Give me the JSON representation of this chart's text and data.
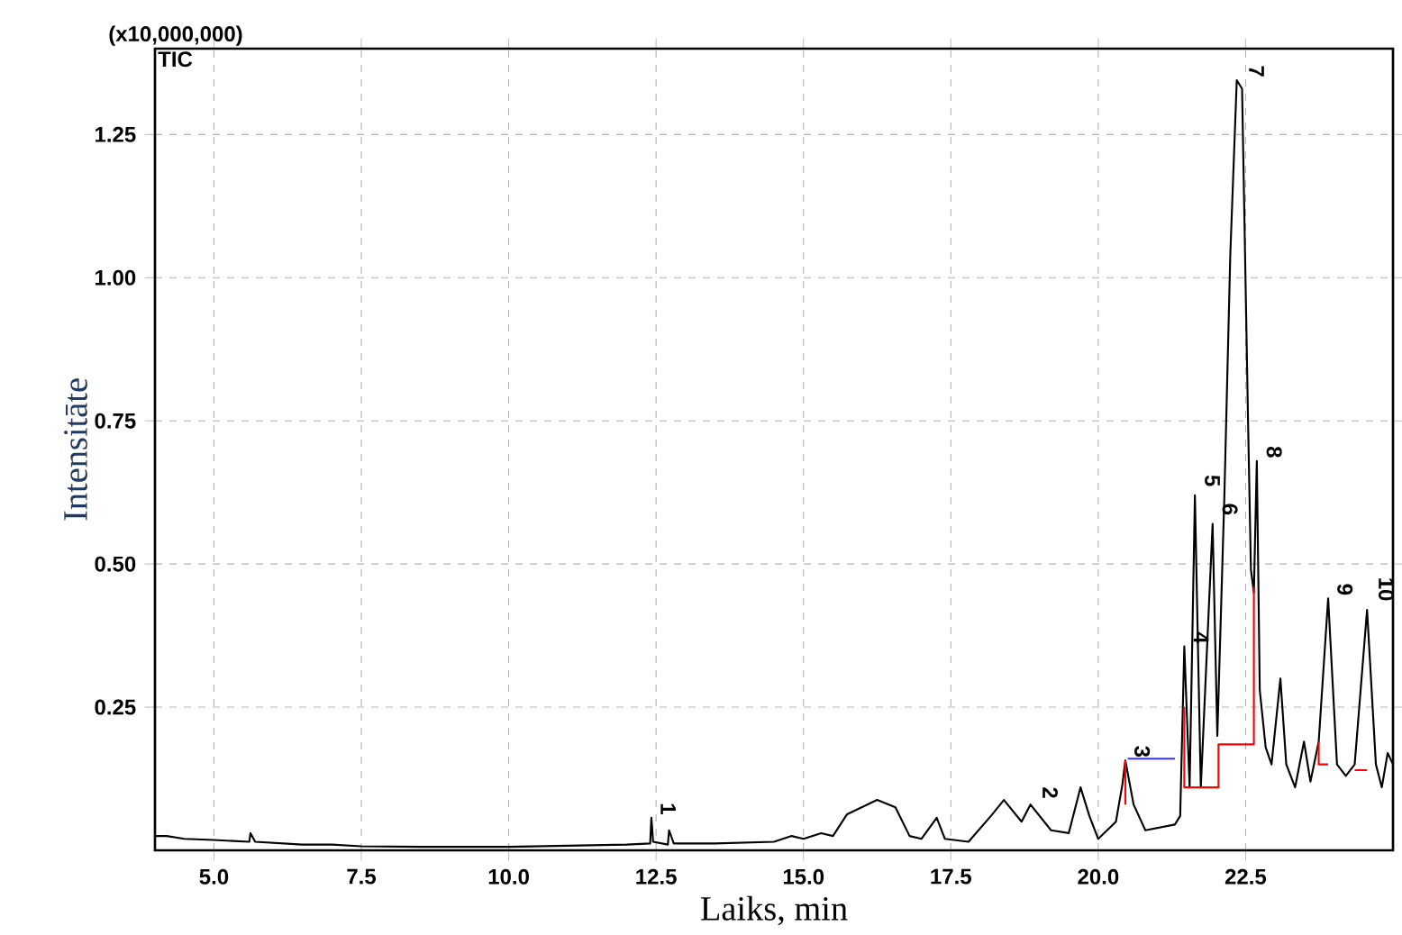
{
  "chart_data": {
    "type": "line",
    "xlabel": "Laiks, min",
    "ylabel": "Intensitāte",
    "xlim": [
      4.0,
      25.0
    ],
    "ylim": [
      0,
      1.4
    ],
    "xticks": [
      {
        "value": 5,
        "label": "5.0"
      },
      {
        "value": 7.5,
        "label": "7.5"
      },
      {
        "value": 10,
        "label": "10.0"
      },
      {
        "value": 12.5,
        "label": "12.5"
      },
      {
        "value": 15,
        "label": "15.0"
      },
      {
        "value": 17.5,
        "label": "17.5"
      },
      {
        "value": 20,
        "label": "20.0"
      },
      {
        "value": 22.5,
        "label": "22.5"
      }
    ],
    "yticks": [
      {
        "value": 0.25,
        "label": "0.25"
      },
      {
        "value": 0.5,
        "label": "0.50"
      },
      {
        "value": 0.75,
        "label": "0.75"
      },
      {
        "value": 1.0,
        "label": "1.00"
      },
      {
        "value": 1.25,
        "label": "1.25"
      }
    ],
    "grid": true,
    "marker": "none",
    "line_style": "solid",
    "series": [
      {
        "color": "#000000",
        "x": [
          4.0,
          4.2,
          4.5,
          5.0,
          5.6,
          5.62,
          5.7,
          6.5,
          7.0,
          7.5,
          8.5,
          10.0,
          11.0,
          12.0,
          12.4,
          12.42,
          12.45,
          12.7,
          12.72,
          12.8,
          13.5,
          14.5,
          14.8,
          15.0,
          15.3,
          15.5,
          15.74,
          16.25,
          16.56,
          16.8,
          17.0,
          17.26,
          17.4,
          17.8,
          18.18,
          18.4,
          18.7,
          18.85,
          19.2,
          19.5,
          19.7,
          19.85,
          20.0,
          20.3,
          20.41,
          20.46,
          20.6,
          20.8,
          21.3,
          21.39,
          21.46,
          21.55,
          21.64,
          21.74,
          21.94,
          22.02,
          22.14,
          22.24,
          22.35,
          22.44,
          22.54,
          22.59,
          22.64,
          22.69,
          22.74,
          22.84,
          22.94,
          23.09,
          23.19,
          23.34,
          23.49,
          23.6,
          23.74,
          23.9,
          24.05,
          24.2,
          24.35,
          24.56,
          24.71,
          24.81,
          24.91,
          25.0
        ],
        "values": [
          0.025,
          0.025,
          0.02,
          0.018,
          0.015,
          0.03,
          0.015,
          0.01,
          0.01,
          0.007,
          0.006,
          0.006,
          0.008,
          0.01,
          0.012,
          0.057,
          0.015,
          0.01,
          0.035,
          0.012,
          0.012,
          0.015,
          0.025,
          0.02,
          0.03,
          0.025,
          0.063,
          0.088,
          0.075,
          0.025,
          0.02,
          0.057,
          0.02,
          0.015,
          0.06,
          0.088,
          0.05,
          0.08,
          0.035,
          0.03,
          0.11,
          0.06,
          0.02,
          0.05,
          0.115,
          0.157,
          0.08,
          0.035,
          0.045,
          0.06,
          0.356,
          0.11,
          0.62,
          0.11,
          0.57,
          0.2,
          0.62,
          1.04,
          1.345,
          1.33,
          0.757,
          0.49,
          0.45,
          0.68,
          0.28,
          0.18,
          0.15,
          0.3,
          0.15,
          0.11,
          0.19,
          0.12,
          0.19,
          0.44,
          0.15,
          0.13,
          0.15,
          0.42,
          0.15,
          0.11,
          0.17,
          0.15
        ]
      },
      {
        "color": "#ff0000",
        "x": [
          20.46,
          20.46,
          20.47,
          21.46,
          21.46,
          22.04,
          22.04,
          22.64,
          22.64,
          22.66,
          23.74,
          23.74,
          23.9,
          23.91,
          24.35,
          24.56
        ],
        "values": [
          0.157,
          0.08,
          null,
          0.25,
          0.11,
          0.11,
          0.185,
          0.185,
          0.46,
          null,
          0.19,
          0.15,
          0.15,
          null,
          0.14,
          0.14
        ]
      },
      {
        "color": "#3333ff",
        "x": [
          20.5,
          21.3
        ],
        "values": [
          0.16,
          0.16
        ]
      }
    ],
    "annotations": [
      "(x10,000,000)",
      "TIC",
      {
        "text": "1",
        "x": 12.42,
        "y": 0.057
      },
      {
        "text": "2",
        "x": 18.9,
        "y": 0.085
      },
      {
        "text": "3",
        "x": 20.46,
        "y": 0.157
      },
      {
        "text": "4",
        "x": 21.46,
        "y": 0.356
      },
      {
        "text": "5",
        "x": 21.65,
        "y": 0.63
      },
      {
        "text": "6",
        "x": 21.95,
        "y": 0.58
      },
      {
        "text": "7",
        "x": 22.4,
        "y": 1.345
      },
      {
        "text": "8",
        "x": 22.7,
        "y": 0.68
      },
      {
        "text": "9",
        "x": 23.9,
        "y": 0.44
      },
      {
        "text": "10",
        "x": 24.6,
        "y": 0.43
      }
    ]
  }
}
